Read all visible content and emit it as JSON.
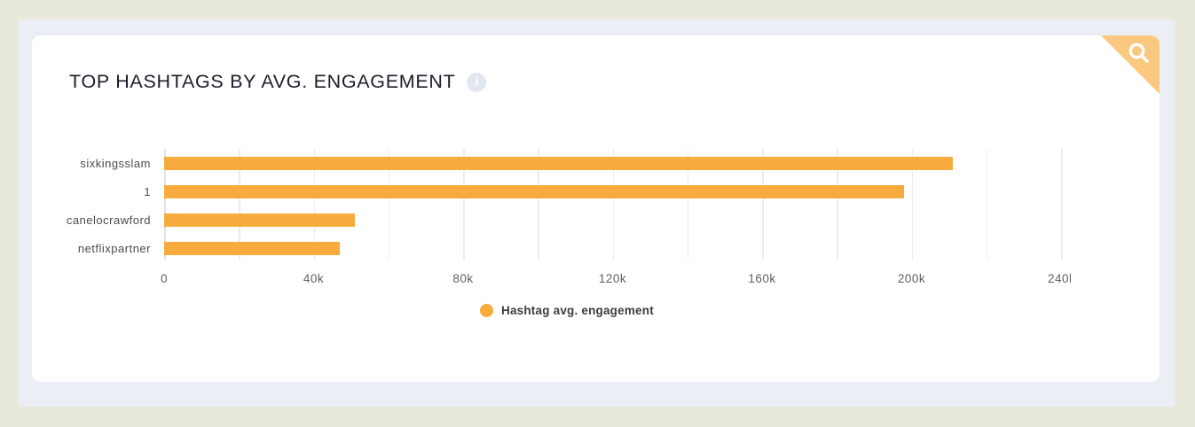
{
  "card": {
    "title": "TOP HASHTAGS BY AVG. ENGAGEMENT"
  },
  "icons": {
    "info": "info-circle-icon",
    "info_glyph": "i",
    "corner": "magnifier-icon"
  },
  "colors": {
    "page_bg": "#e9e9db",
    "panel_bg": "#ebeff5",
    "card_bg": "#ffffff",
    "bar": "#f8ab3d",
    "ribbon": "#fbc87f",
    "title_text": "#1d1d2b"
  },
  "chart_data": {
    "type": "bar",
    "orientation": "horizontal",
    "title": "TOP HASHTAGS BY AVG. ENGAGEMENT",
    "categories": [
      "sixkingsslam",
      "1",
      "canelocrawford",
      "netflixpartner"
    ],
    "series": [
      {
        "name": "Hashtag avg. engagement",
        "color": "#f8ab3d",
        "values": [
          211000,
          198000,
          51000,
          47000
        ]
      }
    ],
    "xlim": [
      0,
      240000
    ],
    "gridline_step": 20000,
    "grid": true,
    "x_tick_values": [
      0,
      40000,
      80000,
      120000,
      160000,
      200000,
      240000
    ],
    "x_tick_labels": [
      "0",
      "40k",
      "80k",
      "120k",
      "160k",
      "200k",
      "240k"
    ],
    "legend": {
      "label": "Hashtag avg. engagement",
      "position": "bottom-center"
    }
  }
}
